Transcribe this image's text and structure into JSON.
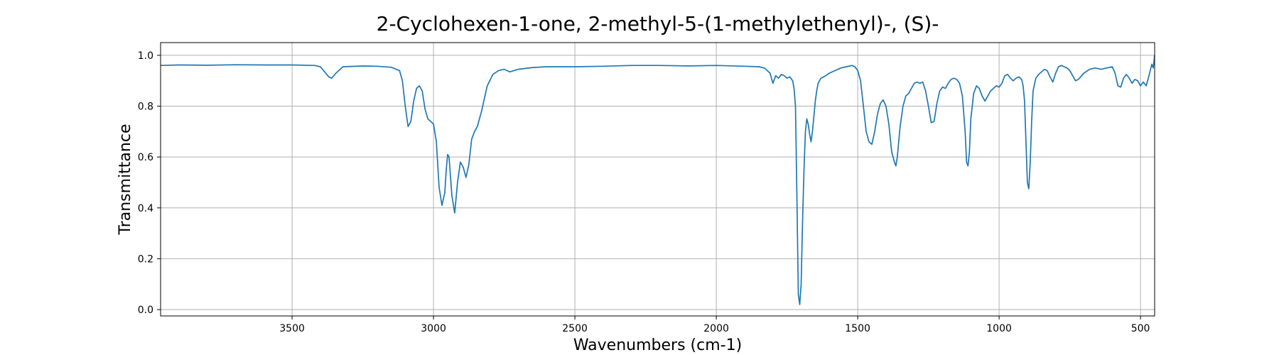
{
  "chart_data": {
    "type": "line",
    "title": "2-Cyclohexen-1-one, 2-methyl-5-(1-methylethenyl)-, (S)-",
    "xlabel": "Wavenumbers (cm-1)",
    "ylabel": "Transmittance",
    "xlim": [
      3965,
      450
    ],
    "ylim": [
      -0.025,
      1.05
    ],
    "x_reversed": true,
    "grid": true,
    "x_ticks": [
      3500,
      3000,
      2500,
      2000,
      1500,
      1000,
      500
    ],
    "x_tick_labels": [
      "3500",
      "3000",
      "2500",
      "2000",
      "1500",
      "1000",
      "500"
    ],
    "y_ticks": [
      0.0,
      0.2,
      0.4,
      0.6,
      0.8,
      1.0
    ],
    "y_tick_labels": [
      "0.0",
      "0.2",
      "0.4",
      "0.6",
      "0.8",
      "1.0"
    ],
    "series": [
      {
        "color": "#1f77b4",
        "x": [
          3965,
          3900,
          3800,
          3700,
          3600,
          3500,
          3420,
          3400,
          3385,
          3370,
          3360,
          3345,
          3320,
          3250,
          3200,
          3150,
          3120,
          3110,
          3100,
          3090,
          3080,
          3070,
          3060,
          3050,
          3040,
          3030,
          3020,
          3010,
          3000,
          2990,
          2980,
          2970,
          2960,
          2955,
          2950,
          2945,
          2935,
          2925,
          2915,
          2905,
          2895,
          2885,
          2875,
          2865,
          2855,
          2845,
          2830,
          2810,
          2790,
          2770,
          2750,
          2740,
          2730,
          2700,
          2650,
          2600,
          2500,
          2400,
          2300,
          2200,
          2100,
          2000,
          1900,
          1850,
          1830,
          1810,
          1800,
          1790,
          1780,
          1770,
          1760,
          1750,
          1740,
          1730,
          1725,
          1720,
          1715,
          1710,
          1705,
          1700,
          1695,
          1690,
          1685,
          1680,
          1675,
          1670,
          1665,
          1660,
          1655,
          1650,
          1645,
          1640,
          1630,
          1620,
          1600,
          1580,
          1560,
          1540,
          1520,
          1510,
          1500,
          1490,
          1480,
          1470,
          1460,
          1450,
          1440,
          1430,
          1420,
          1410,
          1400,
          1390,
          1380,
          1370,
          1365,
          1360,
          1350,
          1340,
          1330,
          1320,
          1310,
          1300,
          1290,
          1280,
          1270,
          1260,
          1250,
          1240,
          1230,
          1220,
          1210,
          1200,
          1190,
          1180,
          1170,
          1160,
          1150,
          1140,
          1130,
          1120,
          1115,
          1110,
          1105,
          1100,
          1090,
          1080,
          1070,
          1060,
          1050,
          1040,
          1030,
          1020,
          1010,
          1000,
          990,
          980,
          970,
          960,
          950,
          940,
          930,
          920,
          915,
          910,
          905,
          900,
          895,
          890,
          885,
          880,
          870,
          860,
          850,
          840,
          830,
          820,
          810,
          800,
          790,
          780,
          770,
          760,
          750,
          740,
          730,
          720,
          700,
          680,
          660,
          640,
          620,
          600,
          590,
          580,
          570,
          560,
          550,
          540,
          530,
          520,
          510,
          500,
          490,
          480,
          470,
          460,
          455,
          450
        ],
        "y": [
          0.96,
          0.962,
          0.961,
          0.963,
          0.962,
          0.962,
          0.96,
          0.955,
          0.935,
          0.915,
          0.91,
          0.93,
          0.955,
          0.958,
          0.957,
          0.953,
          0.94,
          0.9,
          0.8,
          0.72,
          0.74,
          0.82,
          0.87,
          0.88,
          0.86,
          0.79,
          0.75,
          0.74,
          0.73,
          0.66,
          0.48,
          0.41,
          0.46,
          0.55,
          0.61,
          0.6,
          0.45,
          0.38,
          0.5,
          0.58,
          0.56,
          0.52,
          0.57,
          0.67,
          0.7,
          0.72,
          0.78,
          0.88,
          0.925,
          0.94,
          0.945,
          0.94,
          0.935,
          0.945,
          0.952,
          0.955,
          0.955,
          0.957,
          0.96,
          0.96,
          0.958,
          0.96,
          0.957,
          0.955,
          0.95,
          0.93,
          0.89,
          0.92,
          0.91,
          0.925,
          0.92,
          0.91,
          0.915,
          0.9,
          0.87,
          0.8,
          0.45,
          0.06,
          0.02,
          0.1,
          0.35,
          0.55,
          0.7,
          0.75,
          0.73,
          0.69,
          0.66,
          0.7,
          0.76,
          0.82,
          0.86,
          0.89,
          0.91,
          0.915,
          0.93,
          0.94,
          0.95,
          0.955,
          0.96,
          0.955,
          0.94,
          0.9,
          0.8,
          0.7,
          0.66,
          0.65,
          0.7,
          0.77,
          0.81,
          0.825,
          0.8,
          0.73,
          0.62,
          0.58,
          0.565,
          0.6,
          0.72,
          0.8,
          0.84,
          0.85,
          0.87,
          0.89,
          0.895,
          0.89,
          0.895,
          0.86,
          0.8,
          0.735,
          0.74,
          0.81,
          0.86,
          0.875,
          0.87,
          0.89,
          0.905,
          0.91,
          0.905,
          0.89,
          0.84,
          0.7,
          0.58,
          0.565,
          0.62,
          0.75,
          0.85,
          0.88,
          0.87,
          0.84,
          0.82,
          0.84,
          0.86,
          0.87,
          0.88,
          0.875,
          0.89,
          0.92,
          0.925,
          0.91,
          0.9,
          0.91,
          0.915,
          0.905,
          0.88,
          0.82,
          0.66,
          0.5,
          0.475,
          0.58,
          0.74,
          0.86,
          0.91,
          0.925,
          0.935,
          0.945,
          0.94,
          0.915,
          0.895,
          0.93,
          0.955,
          0.96,
          0.955,
          0.95,
          0.94,
          0.92,
          0.9,
          0.905,
          0.93,
          0.945,
          0.95,
          0.945,
          0.95,
          0.955,
          0.93,
          0.88,
          0.875,
          0.91,
          0.925,
          0.91,
          0.89,
          0.905,
          0.9,
          0.88,
          0.895,
          0.88,
          0.92,
          0.965,
          0.95,
          1.0
        ]
      }
    ]
  }
}
